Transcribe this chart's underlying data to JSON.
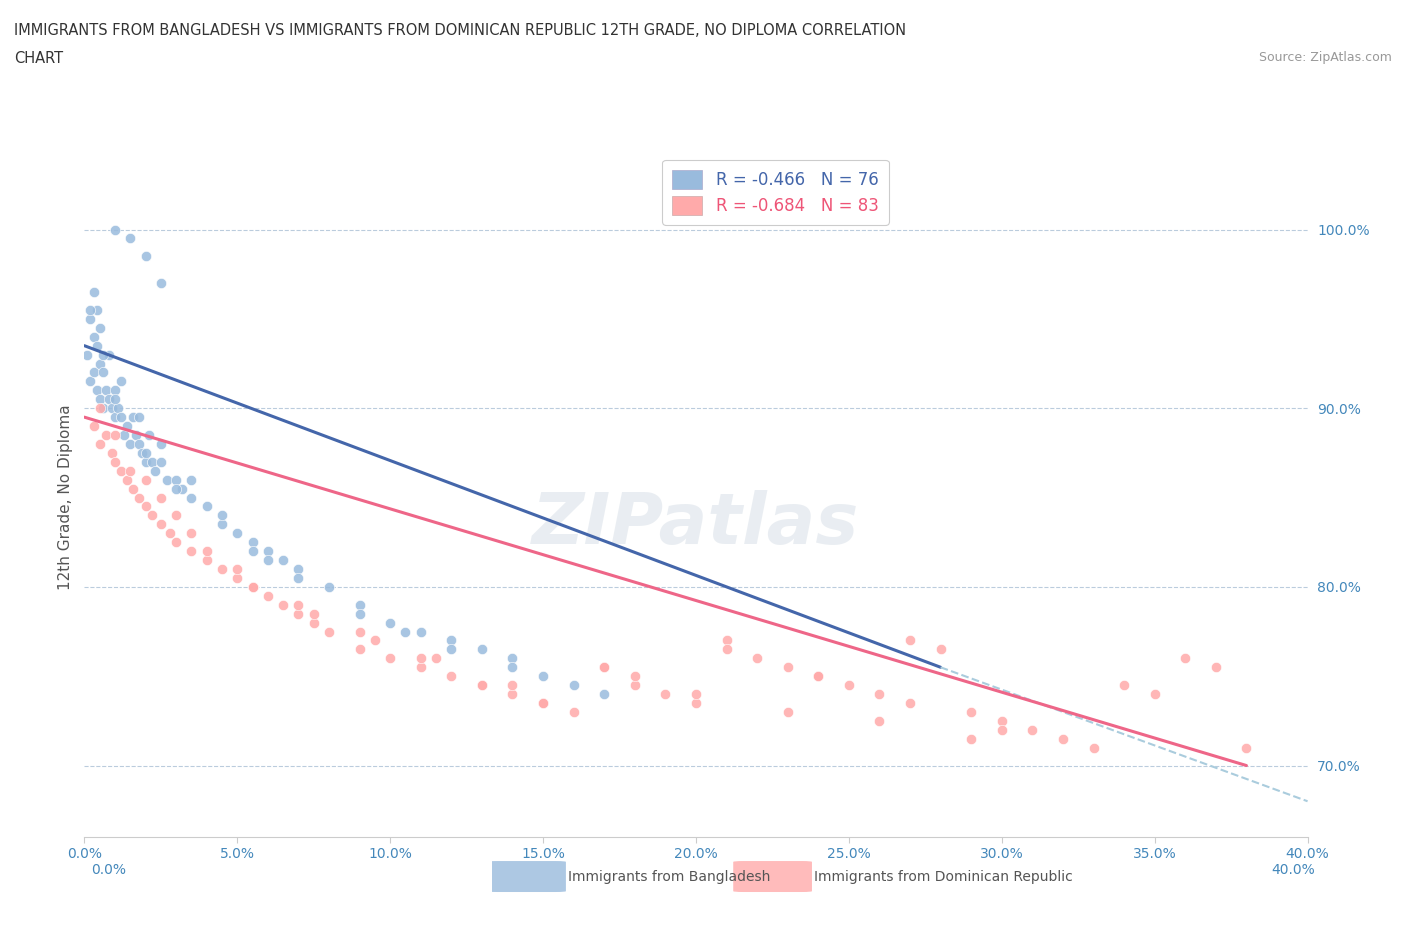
{
  "title_line1": "IMMIGRANTS FROM BANGLADESH VS IMMIGRANTS FROM DOMINICAN REPUBLIC 12TH GRADE, NO DIPLOMA CORRELATION",
  "title_line2": "CHART",
  "source": "Source: ZipAtlas.com",
  "xmin": 0.0,
  "xmax": 40.0,
  "ymin": 66.0,
  "ymax": 104.0,
  "yticks": [
    70.0,
    80.0,
    90.0,
    100.0
  ],
  "xticks": [
    0.0,
    5.0,
    10.0,
    15.0,
    20.0,
    25.0,
    30.0,
    35.0,
    40.0
  ],
  "legend_R1": "R = -0.466",
  "legend_N1": "N = 76",
  "legend_R2": "R = -0.684",
  "legend_N2": "N = 83",
  "color_bangladesh": "#99BBDD",
  "color_domrep": "#FFAAAA",
  "color_trend_bangladesh": "#4466AA",
  "color_trend_domrep": "#EE6688",
  "color_trend_ext": "#AACCDD",
  "watermark": "ZIPatlas",
  "label_bangladesh": "Immigrants from Bangladesh",
  "label_domrep": "Immigrants from Dominican Republic",
  "bang_trend_x0": 0.0,
  "bang_trend_y0": 93.5,
  "bang_trend_x1": 28.0,
  "bang_trend_y1": 75.5,
  "bang_dash_x0": 28.0,
  "bang_dash_y0": 75.5,
  "bang_dash_x1": 40.0,
  "bang_dash_y1": 68.0,
  "dom_trend_x0": 0.0,
  "dom_trend_y0": 89.5,
  "dom_trend_x1": 38.0,
  "dom_trend_y1": 70.0,
  "dom_dash_x0": 38.0,
  "dom_dash_y0": 70.0,
  "dom_dash_x1": 40.0,
  "dom_dash_y1": 69.0,
  "bangladesh_x": [
    0.1,
    0.2,
    0.2,
    0.3,
    0.3,
    0.4,
    0.4,
    0.5,
    0.5,
    0.6,
    0.6,
    0.7,
    0.8,
    0.9,
    1.0,
    1.0,
    1.1,
    1.2,
    1.3,
    1.4,
    1.5,
    1.6,
    1.7,
    1.8,
    1.9,
    2.0,
    2.1,
    2.2,
    2.3,
    2.5,
    2.7,
    3.0,
    3.2,
    3.5,
    4.0,
    4.5,
    5.0,
    5.5,
    6.0,
    6.5,
    7.0,
    8.0,
    9.0,
    10.0,
    11.0,
    12.0,
    13.0,
    14.0,
    15.0,
    16.0,
    1.0,
    1.5,
    2.0,
    2.5,
    0.3,
    0.4,
    0.5,
    0.8,
    1.2,
    1.8,
    2.5,
    3.5,
    4.5,
    5.5,
    7.0,
    9.0,
    10.5,
    12.0,
    14.0,
    17.0,
    0.2,
    0.6,
    1.0,
    2.0,
    3.0,
    6.0
  ],
  "bangladesh_y": [
    93.0,
    91.5,
    95.0,
    92.0,
    94.0,
    91.0,
    93.5,
    90.5,
    92.5,
    90.0,
    92.0,
    91.0,
    90.5,
    90.0,
    91.0,
    89.5,
    90.0,
    89.5,
    88.5,
    89.0,
    88.0,
    89.5,
    88.5,
    88.0,
    87.5,
    87.0,
    88.5,
    87.0,
    86.5,
    87.0,
    86.0,
    86.0,
    85.5,
    85.0,
    84.5,
    83.5,
    83.0,
    82.5,
    82.0,
    81.5,
    81.0,
    80.0,
    79.0,
    78.0,
    77.5,
    77.0,
    76.5,
    76.0,
    75.0,
    74.5,
    100.0,
    99.5,
    98.5,
    97.0,
    96.5,
    95.5,
    94.5,
    93.0,
    91.5,
    89.5,
    88.0,
    86.0,
    84.0,
    82.0,
    80.5,
    78.5,
    77.5,
    76.5,
    75.5,
    74.0,
    95.5,
    93.0,
    90.5,
    87.5,
    85.5,
    81.5
  ],
  "domrep_x": [
    0.3,
    0.5,
    0.7,
    0.9,
    1.0,
    1.2,
    1.4,
    1.6,
    1.8,
    2.0,
    2.2,
    2.5,
    2.8,
    3.0,
    3.5,
    4.0,
    4.5,
    5.0,
    5.5,
    6.0,
    6.5,
    7.0,
    7.5,
    8.0,
    9.0,
    10.0,
    11.0,
    12.0,
    13.0,
    14.0,
    15.0,
    16.0,
    17.0,
    18.0,
    19.0,
    20.0,
    21.0,
    22.0,
    23.0,
    24.0,
    25.0,
    26.0,
    27.0,
    28.0,
    29.0,
    30.0,
    31.0,
    32.0,
    33.0,
    34.0,
    35.0,
    36.0,
    37.0,
    38.0,
    1.5,
    2.5,
    3.5,
    5.0,
    7.0,
    9.0,
    11.0,
    13.0,
    15.0,
    18.0,
    21.0,
    24.0,
    27.0,
    30.0,
    0.5,
    1.0,
    2.0,
    3.0,
    4.0,
    5.5,
    7.5,
    9.5,
    11.5,
    14.0,
    17.0,
    20.0,
    23.0,
    26.0,
    29.0
  ],
  "domrep_y": [
    89.0,
    88.0,
    88.5,
    87.5,
    87.0,
    86.5,
    86.0,
    85.5,
    85.0,
    84.5,
    84.0,
    83.5,
    83.0,
    82.5,
    82.0,
    81.5,
    81.0,
    80.5,
    80.0,
    79.5,
    79.0,
    78.5,
    78.0,
    77.5,
    76.5,
    76.0,
    75.5,
    75.0,
    74.5,
    74.0,
    73.5,
    73.0,
    75.5,
    74.5,
    74.0,
    73.5,
    77.0,
    76.0,
    75.5,
    75.0,
    74.5,
    74.0,
    77.0,
    76.5,
    73.0,
    72.5,
    72.0,
    71.5,
    71.0,
    74.5,
    74.0,
    76.0,
    75.5,
    71.0,
    86.5,
    85.0,
    83.0,
    81.0,
    79.0,
    77.5,
    76.0,
    74.5,
    73.5,
    75.0,
    76.5,
    75.0,
    73.5,
    72.0,
    90.0,
    88.5,
    86.0,
    84.0,
    82.0,
    80.0,
    78.5,
    77.0,
    76.0,
    74.5,
    75.5,
    74.0,
    73.0,
    72.5,
    71.5
  ]
}
